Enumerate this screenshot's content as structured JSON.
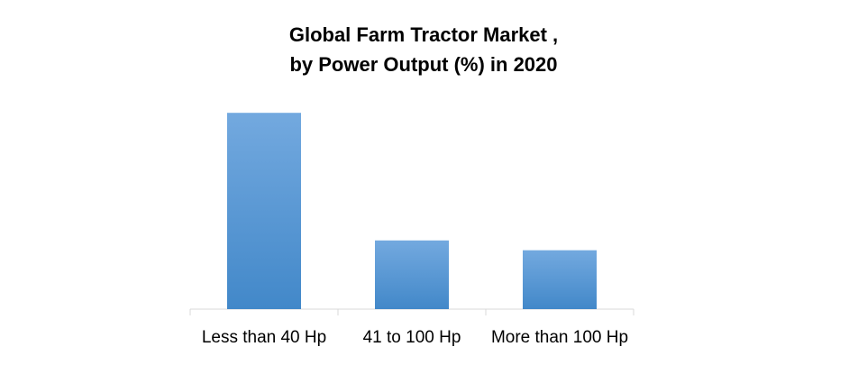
{
  "chart_data": {
    "type": "bar",
    "title": [
      "Global Farm Tractor Market ,",
      "by Power Output (%) in 2020"
    ],
    "categories": [
      "Less than 40 Hp",
      "41 to 100 Hp",
      "More than 100 Hp"
    ],
    "values": [
      60,
      21,
      18
    ],
    "color": "#5b9bd5"
  }
}
